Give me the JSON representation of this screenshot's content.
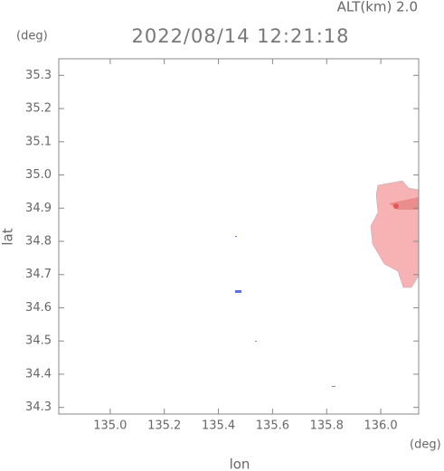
{
  "chart_data": {
    "type": "map",
    "title": "2022/08/14 12:21:18",
    "subtitle": "ALT(km) 2.0",
    "y_unit": "(deg)",
    "x_unit": "(deg)",
    "xlabel": "lon",
    "ylabel": "lat",
    "xlim": [
      134.81,
      136.14
    ],
    "ylim": [
      34.28,
      35.35
    ],
    "xticks": [
      {
        "value": 135,
        "label": "135.0"
      },
      135.2,
      135.4,
      135.6,
      135.8,
      {
        "value": 136,
        "label": "136.0"
      }
    ],
    "yticks": [
      34.3,
      34.4,
      34.5,
      34.6,
      34.7,
      34.8,
      34.9,
      {
        "value": 35,
        "label": "35.0"
      },
      35.1,
      35.2,
      35.3
    ]
  }
}
